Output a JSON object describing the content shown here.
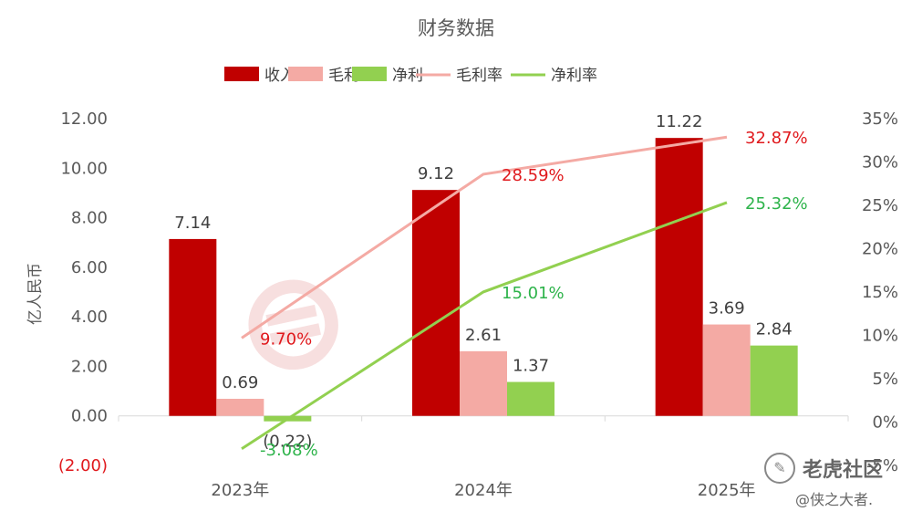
{
  "chart_data": {
    "type": "bar",
    "title": "财务数据",
    "ylabel": "亿人民币",
    "categories": [
      "2023年",
      "2024年",
      "2025年"
    ],
    "y_left": {
      "ticks": [
        "12.00",
        "10.00",
        "8.00",
        "6.00",
        "4.00",
        "2.00",
        "0.00",
        "(2.00)"
      ],
      "range": [
        -2,
        12
      ]
    },
    "y_right": {
      "ticks": [
        "35%",
        "30%",
        "25%",
        "20%",
        "15%",
        "10%",
        "5%",
        "0%",
        "-5%"
      ],
      "range": [
        -5,
        35
      ]
    },
    "series": [
      {
        "name": "收入",
        "kind": "bar",
        "color": "#c00000",
        "values": [
          7.14,
          9.12,
          11.22
        ],
        "labels": [
          "7.14",
          "9.12",
          "11.22"
        ]
      },
      {
        "name": "毛利",
        "kind": "bar",
        "color": "#f4aaa4",
        "values": [
          0.69,
          2.61,
          3.69
        ],
        "labels": [
          "0.69",
          "2.61",
          "3.69"
        ]
      },
      {
        "name": "净利",
        "kind": "bar",
        "color": "#92d050",
        "values": [
          -0.22,
          1.37,
          2.84
        ],
        "labels": [
          "(0.22)",
          "1.37",
          "2.84"
        ]
      },
      {
        "name": "毛利率",
        "kind": "line",
        "axis": "right",
        "color": "#f4aaa4",
        "label_color": "#e0191d",
        "values": [
          9.7,
          28.59,
          32.87
        ],
        "labels": [
          "9.70%",
          "28.59%",
          "32.87%"
        ]
      },
      {
        "name": "净利率",
        "kind": "line",
        "axis": "right",
        "color": "#92d050",
        "label_color": "#2db34a",
        "values": [
          -3.08,
          15.01,
          25.32
        ],
        "labels": [
          "-3.08%",
          "15.01%",
          "25.32%"
        ]
      }
    ],
    "legend": "top-center",
    "grid": false
  },
  "watermark": {
    "brand": "老虎社区",
    "user": "@侠之大者."
  }
}
